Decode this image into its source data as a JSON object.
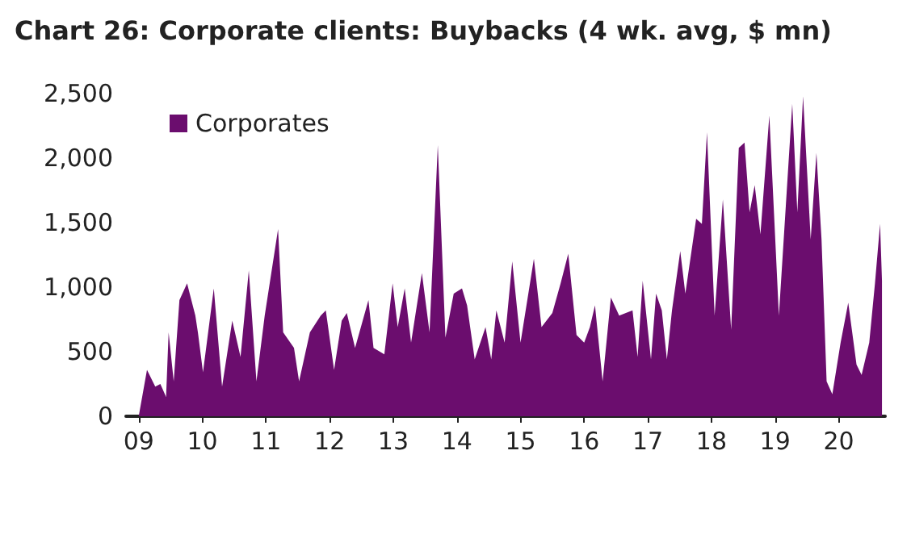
{
  "chart_data": {
    "type": "area",
    "title": "Chart 26: Corporate clients: Buybacks (4 wk. avg, $ mn)",
    "x": [
      2009.0,
      2009.13,
      2009.26,
      2009.34,
      2009.43,
      2009.47,
      2009.55,
      2009.64,
      2009.76,
      2009.89,
      2009.93,
      2010.01,
      2010.18,
      2010.31,
      2010.47,
      2010.6,
      2010.73,
      2010.85,
      2010.98,
      2011.19,
      2011.27,
      2011.44,
      2011.52,
      2011.69,
      2011.86,
      2011.94,
      2012.07,
      2012.19,
      2012.27,
      2012.4,
      2012.61,
      2012.69,
      2012.86,
      2012.99,
      2013.07,
      2013.18,
      2013.28,
      2013.45,
      2013.57,
      2013.7,
      2013.82,
      2013.95,
      2014.08,
      2014.16,
      2014.28,
      2014.45,
      2014.54,
      2014.62,
      2014.75,
      2014.87,
      2015.0,
      2015.21,
      2015.33,
      2015.5,
      2015.63,
      2015.75,
      2015.88,
      2016.0,
      2016.09,
      2016.17,
      2016.29,
      2016.42,
      2016.55,
      2016.76,
      2016.84,
      2016.92,
      2017.05,
      2017.13,
      2017.22,
      2017.3,
      2017.38,
      2017.51,
      2017.59,
      2017.76,
      2017.85,
      2017.93,
      2018.05,
      2018.18,
      2018.31,
      2018.43,
      2018.52,
      2018.6,
      2018.68,
      2018.77,
      2018.91,
      2019.06,
      2019.27,
      2019.35,
      2019.44,
      2019.56,
      2019.65,
      2019.73,
      2019.81,
      2019.9,
      2020.03,
      2020.15,
      2020.28,
      2020.36,
      2020.48,
      2020.57,
      2020.65,
      2020.68
    ],
    "series": [
      {
        "name": "Corporates",
        "color": "#6b0d6e",
        "values": [
          0,
          360,
          230,
          250,
          150,
          650,
          270,
          900,
          1030,
          780,
          650,
          340,
          990,
          230,
          740,
          460,
          1130,
          270,
          780,
          1450,
          650,
          530,
          270,
          650,
          780,
          820,
          360,
          740,
          800,
          530,
          900,
          530,
          480,
          1030,
          690,
          990,
          570,
          1110,
          650,
          2100,
          610,
          950,
          990,
          860,
          440,
          690,
          440,
          820,
          570,
          1200,
          570,
          1220,
          690,
          800,
          1030,
          1260,
          630,
          570,
          690,
          860,
          270,
          920,
          780,
          820,
          460,
          1050,
          440,
          950,
          820,
          440,
          820,
          1280,
          950,
          1530,
          1490,
          2200,
          780,
          1680,
          670,
          2080,
          2120,
          1580,
          1790,
          1410,
          2330,
          780,
          2420,
          1580,
          2480,
          1370,
          2040,
          1370,
          270,
          170,
          570,
          880,
          400,
          320,
          570,
          1030,
          1490,
          1050
        ]
      }
    ],
    "xlim": [
      2008.8,
      2020.73
    ],
    "xticks": [
      {
        "value": 2009,
        "label": "09"
      },
      {
        "value": 2010,
        "label": "10"
      },
      {
        "value": 2011,
        "label": "11"
      },
      {
        "value": 2012,
        "label": "12"
      },
      {
        "value": 2013,
        "label": "13"
      },
      {
        "value": 2014,
        "label": "14"
      },
      {
        "value": 2015,
        "label": "15"
      },
      {
        "value": 2016,
        "label": "16"
      },
      {
        "value": 2017,
        "label": "17"
      },
      {
        "value": 2018,
        "label": "18"
      },
      {
        "value": 2019,
        "label": "19"
      },
      {
        "value": 2020,
        "label": "20"
      }
    ],
    "ylim": [
      0,
      2500
    ],
    "yticks": [
      0,
      500,
      {
        "value": 1000,
        "label": "1,000"
      },
      {
        "value": 1500,
        "label": "1,500"
      },
      {
        "value": 2000,
        "label": "2,000"
      },
      {
        "value": 2500,
        "label": "2,500"
      }
    ],
    "legend": "top left",
    "grid": false
  }
}
